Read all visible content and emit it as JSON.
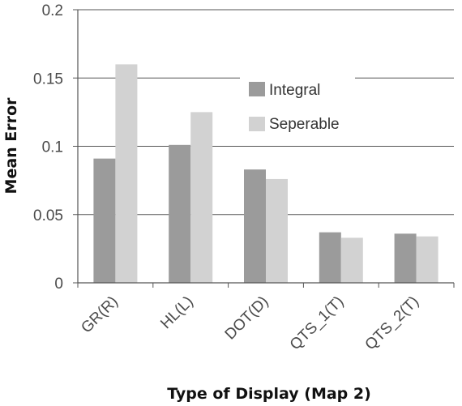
{
  "chart_data": {
    "type": "bar",
    "title": "",
    "xlabel": "Type of Display (Map 2)",
    "ylabel": "Mean Error",
    "categories": [
      "GR(R)",
      "HL(L)",
      "DOT(D)",
      "QTS_1(T)",
      "QTS_2(T)"
    ],
    "series": [
      {
        "name": "Integral",
        "color": "#9b9b9b",
        "values": [
          0.091,
          0.101,
          0.083,
          0.037,
          0.036
        ]
      },
      {
        "name": "Seperable",
        "color": "#d2d2d2",
        "values": [
          0.16,
          0.125,
          0.076,
          0.033,
          0.034
        ]
      }
    ],
    "ylim": [
      0,
      0.2
    ],
    "yticks": [
      "0",
      "0.05",
      "0.1",
      "0.15",
      "0.2"
    ],
    "grid": true,
    "legend_position": "top-right"
  }
}
